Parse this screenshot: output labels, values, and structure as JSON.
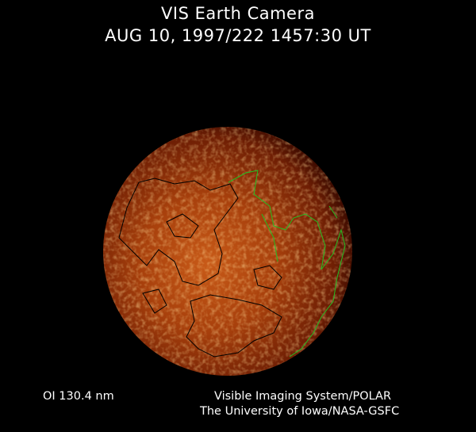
{
  "header": {
    "title": "VIS Earth Camera",
    "timestamp": "AUG 10, 1997/222 1457:30 UT"
  },
  "image": {
    "subject": "Earth far-ultraviolet auroral image",
    "colors": {
      "background": "#000000",
      "bright": "#f0a040",
      "mid": "#b04010",
      "dark": "#3a0800",
      "coastline_day": "#000000",
      "coastline_night": "#22c022"
    }
  },
  "footer": {
    "wavelength": "OI  130.4 nm",
    "instrument": "Visible Imaging System/POLAR",
    "institution": "The University of Iowa/NASA-GSFC"
  }
}
